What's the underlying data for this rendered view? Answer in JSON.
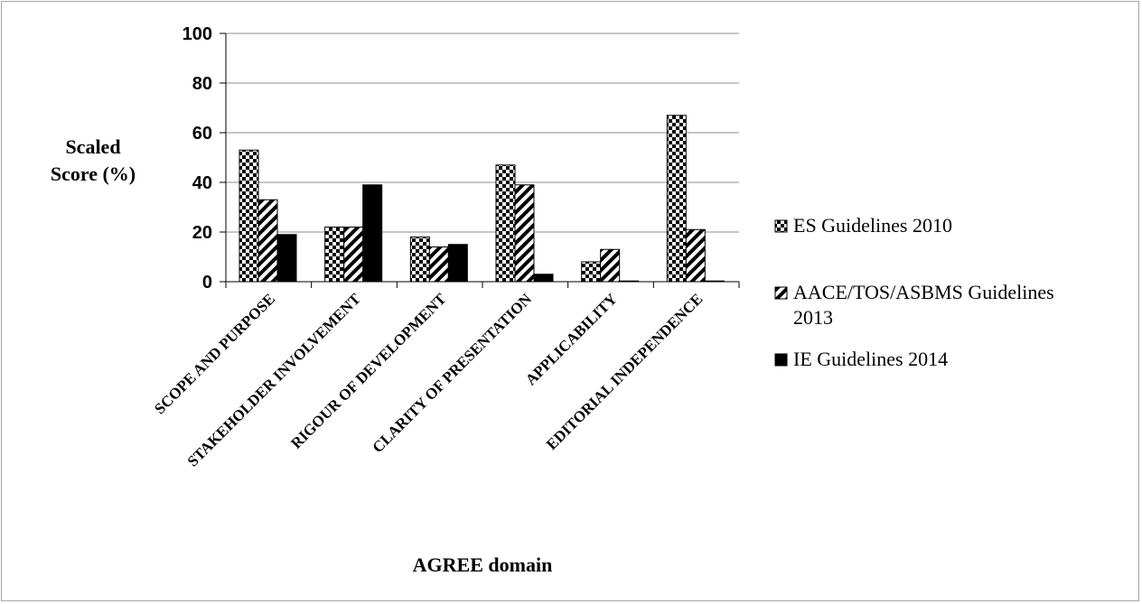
{
  "chart_data": {
    "type": "bar",
    "title": "",
    "xlabel": "AGREE domain",
    "ylabel_lines": [
      "Scaled",
      "Score (%)"
    ],
    "ylim": [
      0,
      100
    ],
    "yticks": [
      0,
      20,
      40,
      60,
      80,
      100
    ],
    "grid": true,
    "legend_position": "right",
    "categories": [
      "SCOPE AND PURPOSE",
      "STAKEHOLDER INVOLVEMENT",
      "RIGOUR OF DEVELOPMENT",
      "CLARITY OF PRESENTATION",
      "APPLICABILITY",
      "EDITORIAL INDEPENDENCE"
    ],
    "series": [
      {
        "name": "ES Guidelines 2010",
        "pattern": "checker",
        "values": [
          53,
          22,
          18,
          47,
          8,
          67
        ]
      },
      {
        "name": "AACE/TOS/ASBMS Guidelines 2013",
        "pattern": "diagonal",
        "values": [
          33,
          22,
          14,
          39,
          13,
          21
        ]
      },
      {
        "name": "IE Guidelines 2014",
        "pattern": "solid",
        "values": [
          19,
          39,
          15,
          3,
          0,
          0
        ]
      }
    ],
    "colors": {
      "bar_fill": "#000000",
      "background": "#ffffff",
      "grid": "#8c8c8c",
      "frame": "#a6a6a6"
    }
  }
}
